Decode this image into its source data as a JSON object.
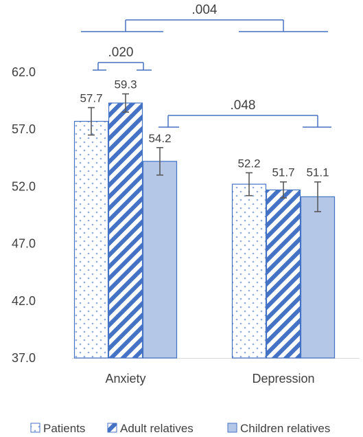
{
  "chart_data": {
    "type": "bar",
    "categories": [
      "Anxiety",
      "Depression"
    ],
    "series": [
      {
        "name": "Patients",
        "values": [
          57.7,
          52.2
        ],
        "errors": [
          1.2,
          1.0
        ],
        "pattern": "dots"
      },
      {
        "name": "Adult relatives",
        "values": [
          59.3,
          51.7
        ],
        "errors": [
          0.8,
          0.7
        ],
        "pattern": "diagonal"
      },
      {
        "name": "Children relatives",
        "values": [
          54.2,
          51.1
        ],
        "errors": [
          1.2,
          1.3
        ],
        "pattern": "solid"
      }
    ],
    "y_ticks": [
      "37.0",
      "42.0",
      "47.0",
      "52.0",
      "57.0",
      "62.0"
    ],
    "ylim": [
      37,
      62
    ],
    "data_labels": [
      [
        "57.7",
        "52.2"
      ],
      [
        "59.3",
        "51.7"
      ],
      [
        "54.2",
        "51.1"
      ]
    ],
    "significance": [
      {
        "label": ".004",
        "from": "Anxiety",
        "to": "Depression"
      },
      {
        "label": ".020",
        "from": "Patients",
        "to": "Adult relatives",
        "category": "Anxiety"
      },
      {
        "label": ".048",
        "from": "Children relatives/Anxiety",
        "to": "Children relatives/Depression"
      }
    ],
    "legend_position": "bottom",
    "colors": {
      "bar_border": "#4472c4",
      "dots": "#8faadc",
      "diagonal": "#4472c4",
      "solid_fill": "#b4c7e7",
      "error_bar": "#595959",
      "bracket": "#4472c4",
      "axis": "#d9d9d9"
    }
  }
}
